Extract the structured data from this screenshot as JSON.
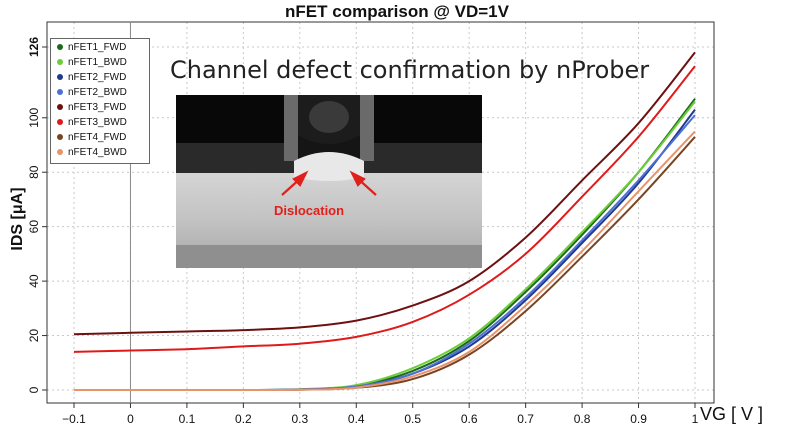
{
  "chart_data": {
    "type": "line",
    "title": "nFET comparison @ VD=1V",
    "xlabel": "VG [ V ]",
    "ylabel": "IDS [μA]",
    "xlim": [
      -0.1,
      1.0
    ],
    "ylim": [
      0,
      126
    ],
    "x_ticks": [
      "−0.1",
      "0",
      "0.1",
      "0.2",
      "0.3",
      "0.4",
      "0.5",
      "0.6",
      "0.7",
      "0.8",
      "0.9",
      "1"
    ],
    "y_ticks": [
      "0",
      "20",
      "40",
      "60",
      "80",
      "100",
      "126"
    ],
    "grid": true,
    "legend_position": "top-left",
    "x": [
      -0.1,
      0,
      0.1,
      0.2,
      0.3,
      0.4,
      0.5,
      0.6,
      0.7,
      0.8,
      0.9,
      1.0
    ],
    "series": [
      {
        "name": "nFET1_FWD",
        "color": "#1a6b1a",
        "values": [
          0,
          0,
          0,
          0,
          0.2,
          1.5,
          7,
          18,
          36,
          57,
          80,
          107
        ]
      },
      {
        "name": "nFET1_BWD",
        "color": "#6dcc3a",
        "values": [
          0,
          0,
          0,
          0,
          0.3,
          1.8,
          8,
          19,
          37,
          58,
          80,
          106
        ]
      },
      {
        "name": "nFET2_FWD",
        "color": "#1f3a8f",
        "values": [
          0,
          0,
          0,
          0,
          0.2,
          1.2,
          6,
          16,
          33,
          54,
          76,
          103
        ]
      },
      {
        "name": "nFET2_BWD",
        "color": "#4d6fd6",
        "values": [
          0,
          0,
          0,
          0,
          0.2,
          1.3,
          6,
          17,
          34,
          55,
          77,
          101
        ]
      },
      {
        "name": "nFET3_FWD",
        "color": "#6e1010",
        "values": [
          20.5,
          21,
          21.5,
          22,
          23,
          25.5,
          31,
          40,
          56,
          77,
          98,
          124
        ]
      },
      {
        "name": "nFET3_BWD",
        "color": "#e01a1a",
        "values": [
          14,
          14.5,
          15,
          16,
          17,
          19.5,
          25,
          35,
          50,
          71,
          93,
          119
        ]
      },
      {
        "name": "nFET4_FWD",
        "color": "#7a4422",
        "values": [
          0,
          0,
          0,
          0,
          0.1,
          0.8,
          4,
          13,
          29,
          49,
          70,
          93
        ]
      },
      {
        "name": "nFET4_BWD",
        "color": "#e8946a",
        "values": [
          0,
          0,
          0,
          0,
          0.1,
          0.9,
          5,
          14,
          31,
          51,
          73,
          95
        ]
      }
    ],
    "annotation": "Channel defect confirmation by nProber",
    "inset_label": "Dislocation"
  }
}
